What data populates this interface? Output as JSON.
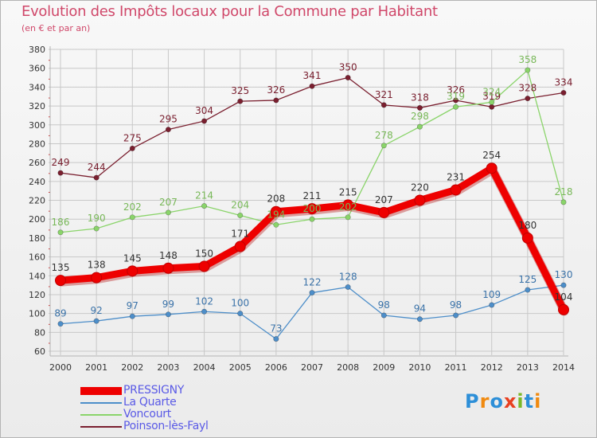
{
  "header": {
    "title": "Evolution des Impôts locaux pour la Commune par Habitant",
    "subtitle": "(en € et par an)"
  },
  "colors": {
    "title": "#d0486a",
    "grid": "#c8c8c8",
    "axis": "#b4b4b4",
    "labels": "#333333"
  },
  "logo": {
    "text": "Proxiti",
    "letter_colors": [
      "#2d8fd8",
      "#f08a10",
      "#2d8fd8",
      "#e84020",
      "#7ab828",
      "#2d8fd8",
      "#f08a10"
    ]
  },
  "chart_data": {
    "type": "line",
    "title": "Evolution des Impôts locaux pour la Commune par Habitant",
    "subtitle": "(en € et par an)",
    "xlabel": "",
    "ylabel": "",
    "ylim": [
      60,
      380
    ],
    "yticks": [
      60,
      80,
      100,
      120,
      140,
      160,
      180,
      200,
      220,
      240,
      260,
      280,
      300,
      320,
      340,
      360,
      380
    ],
    "grid": true,
    "legend_position": "bottom-left",
    "x": [
      2000,
      2001,
      2002,
      2003,
      2004,
      2005,
      2006,
      2007,
      2008,
      2009,
      2010,
      2011,
      2012,
      2013,
      2014
    ],
    "series": [
      {
        "name": "Poinson-lès-Fayl",
        "color": "#7a1f2f",
        "label_color": "#7a2030",
        "values": [
          249,
          244,
          275,
          295,
          304,
          325,
          326,
          341,
          350,
          321,
          318,
          326,
          319,
          328,
          334
        ],
        "labels": [
          "249",
          "244",
          "275",
          "295",
          "304",
          "325",
          "326",
          "341",
          "350",
          "321",
          "318",
          "326",
          "319",
          "328",
          "334"
        ]
      },
      {
        "name": "Voncourt",
        "color": "#8ad46a",
        "label_color": "#78b858",
        "values": [
          186,
          190,
          202,
          207,
          214,
          204,
          194,
          200,
          202,
          278,
          298,
          319,
          324,
          358,
          218
        ],
        "labels": [
          "186",
          "190",
          "202",
          "207",
          "214",
          "204",
          "194",
          "200",
          "202",
          "278",
          "298",
          "319",
          "324",
          "358",
          "218"
        ]
      },
      {
        "name": "La Quarte",
        "color": "#4d8ec9",
        "label_color": "#3a72a8",
        "values": [
          89,
          92,
          97,
          99,
          102,
          100,
          73,
          122,
          128,
          98,
          94,
          98,
          109,
          125,
          130
        ],
        "labels": [
          "89",
          "92",
          "97",
          "99",
          "102",
          "100",
          "73",
          "122",
          "128",
          "98",
          "94",
          "98",
          "109",
          "125",
          "130"
        ]
      },
      {
        "name": "PRESSIGNY",
        "color": "#ee0000",
        "label_color": "#333333",
        "values": [
          135,
          138,
          145,
          148,
          150,
          171,
          208,
          211,
          215,
          207,
          220,
          231,
          254,
          180,
          104
        ],
        "labels": [
          "135",
          "138",
          "145",
          "148",
          "150",
          "171",
          "208",
          "211",
          "215",
          "207",
          "220",
          "231",
          "254",
          "180",
          "104"
        ]
      }
    ]
  },
  "legend": [
    {
      "name": "PRESSIGNY",
      "color": "#ee0000",
      "label_color": "#5a5ae6",
      "thick": true
    },
    {
      "name": "La Quarte",
      "color": "#4d8ec9",
      "label_color": "#5a5ae6",
      "thick": false
    },
    {
      "name": "Voncourt",
      "color": "#8ad46a",
      "label_color": "#5a5ae6",
      "thick": false
    },
    {
      "name": "Poinson-lès-Fayl",
      "color": "#7a1f2f",
      "label_color": "#5a5ae6",
      "thick": false
    }
  ]
}
